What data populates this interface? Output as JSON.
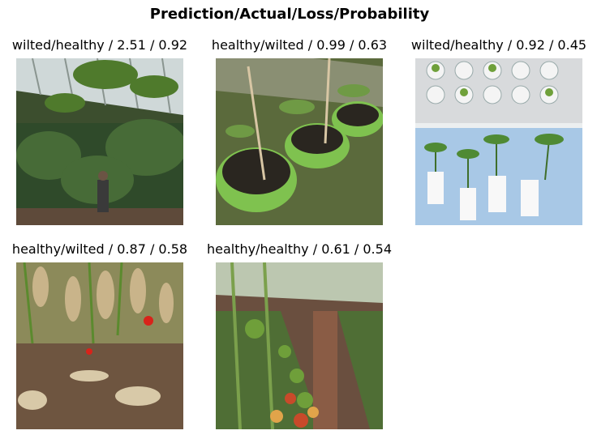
{
  "suptitle": "Prediction/Actual/Loss/Probability",
  "panels": [
    {
      "label": "wilted/healthy / 2.51 / 0.92",
      "image": "greenhouse-interior-with-person-among-tropical-plants"
    },
    {
      "label": "healthy/wilted / 0.99 / 0.63",
      "image": "tomato-seedlings-in-green-pots-with-stakes"
    },
    {
      "label": "wilted/healthy / 0.92 / 0.45",
      "image": "seedlings-in-white-cups-and-bins"
    },
    {
      "label": "healthy/wilted / 0.87 / 0.58",
      "image": "wilted-tomato-plants-with-dry-leaves-on-soil"
    },
    {
      "label": "healthy/healthy / 0.61 / 0.54",
      "image": "greenhouse-tomato-rows-with-green-fruit"
    }
  ]
}
